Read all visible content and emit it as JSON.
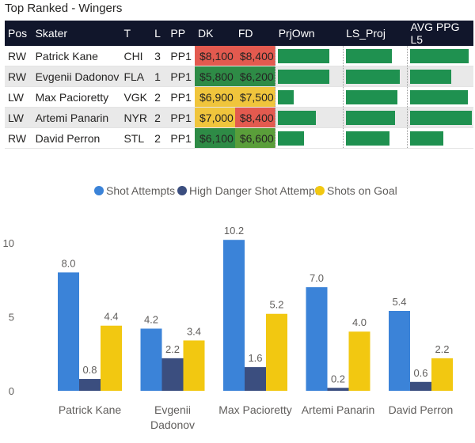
{
  "title": "Top Ranked - Wingers",
  "table": {
    "columns": [
      "Pos",
      "Skater",
      "T",
      "L",
      "PP",
      "DK",
      "FD",
      "PrjOwn",
      "LS_Proj",
      "AVG PPG L5"
    ],
    "rows": [
      {
        "pos": "RW",
        "skater": "Patrick Kane",
        "team": "CHI",
        "line": "3",
        "pp": "PP1",
        "dk": "$8,100",
        "fd": "$8,400",
        "dk_color": "#e35a4f",
        "fd_color": "#e35a4f",
        "prjown": 0.79,
        "ls_proj": 0.76,
        "avg_ppg": 0.93
      },
      {
        "pos": "RW",
        "skater": "Evgenii Dadonov",
        "team": "FLA",
        "line": "1",
        "pp": "PP1",
        "dk": "$5,800",
        "fd": "$6,200",
        "dk_color": "#2e8b46",
        "fd_color": "#2e8b46",
        "prjown": 0.79,
        "ls_proj": 0.88,
        "avg_ppg": 0.65
      },
      {
        "pos": "LW",
        "skater": "Max Pacioretty",
        "team": "VGK",
        "line": "2",
        "pp": "PP1",
        "dk": "$6,900",
        "fd": "$7,500",
        "dk_color": "#f0c53c",
        "fd_color": "#f0c53c",
        "prjown": 0.24,
        "ls_proj": 0.85,
        "avg_ppg": 0.91
      },
      {
        "pos": "LW",
        "skater": "Artemi Panarin",
        "team": "NYR",
        "line": "2",
        "pp": "PP1",
        "dk": "$7,000",
        "fd": "$8,400",
        "dk_color": "#f0c53c",
        "fd_color": "#e35a4f",
        "prjown": 0.59,
        "ls_proj": 0.8,
        "avg_ppg": 0.98
      },
      {
        "pos": "RW",
        "skater": "David Perron",
        "team": "STL",
        "line": "2",
        "pp": "PP1",
        "dk": "$6,100",
        "fd": "$6,600",
        "dk_color": "#2e8b46",
        "fd_color": "#5a9e3a",
        "prjown": 0.4,
        "ls_proj": 0.71,
        "avg_ppg": 0.52
      }
    ]
  },
  "chart_data": {
    "type": "bar",
    "categories": [
      "Patrick Kane",
      "Evgenii Dadonov",
      "Max Pacioretty",
      "Artemi Panarin",
      "David Perron"
    ],
    "series": [
      {
        "name": "Shot Attempts",
        "color": "#3b83d8",
        "values": [
          8.0,
          4.2,
          10.2,
          7.0,
          5.4
        ]
      },
      {
        "name": "High Danger Shot Attempts",
        "color": "#3b4e7f",
        "values": [
          0.8,
          2.2,
          1.6,
          0.2,
          0.6
        ]
      },
      {
        "name": "Shots on Goal",
        "color": "#f2c811",
        "values": [
          4.4,
          3.4,
          5.2,
          4.0,
          2.2
        ]
      }
    ],
    "yticks": [
      0,
      5,
      10
    ],
    "ylim": [
      0,
      10.8
    ],
    "legend_position": "top-center"
  }
}
